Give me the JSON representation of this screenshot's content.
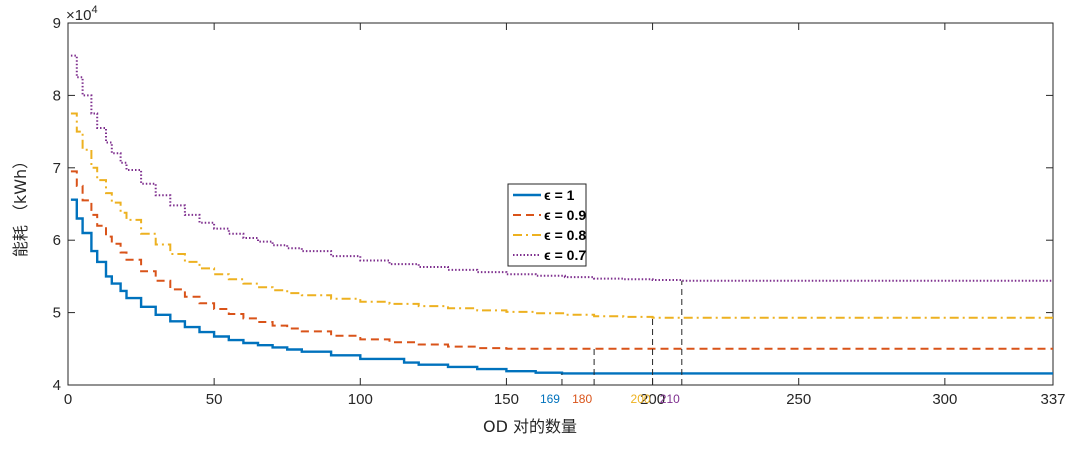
{
  "chart_data": {
    "type": "line",
    "xlabel": "OD 对的数量",
    "ylabel": "能耗 （kWh）",
    "y_multiplier": "×10",
    "y_multiplier_exp": "4",
    "xlim": [
      0,
      337
    ],
    "ylim": [
      40000,
      90000
    ],
    "x_ticks": [
      0,
      50,
      100,
      150,
      200,
      250,
      300,
      337
    ],
    "x_tick_labels": [
      "0",
      "50",
      "100",
      "150",
      "200",
      "250",
      "300",
      "337"
    ],
    "y_ticks": [
      40000,
      50000,
      60000,
      70000,
      80000,
      90000
    ],
    "y_tick_labels": [
      "4",
      "5",
      "6",
      "7",
      "8",
      "9"
    ],
    "grid": false,
    "legend_position": "center",
    "series": [
      {
        "name": "ϵ = 1",
        "color": "#0072BD",
        "dash": "solid",
        "x": [
          1,
          3,
          5,
          8,
          10,
          13,
          15,
          18,
          20,
          25,
          30,
          35,
          40,
          45,
          50,
          55,
          60,
          65,
          70,
          75,
          80,
          90,
          100,
          115,
          120,
          130,
          140,
          150,
          160,
          169,
          200,
          250,
          300,
          337
        ],
        "y": [
          65600,
          63000,
          61000,
          58500,
          57000,
          55000,
          54000,
          53000,
          52000,
          50800,
          49700,
          48800,
          48000,
          47300,
          46700,
          46200,
          45800,
          45500,
          45200,
          44900,
          44600,
          44100,
          43600,
          43100,
          42800,
          42500,
          42200,
          41900,
          41700,
          41600,
          41600,
          41600,
          41600,
          41600
        ],
        "end_x": 169
      },
      {
        "name": "ϵ = 0.9",
        "color": "#D95319",
        "dash": "dashed",
        "x": [
          1,
          3,
          5,
          8,
          10,
          13,
          15,
          18,
          20,
          25,
          30,
          35,
          40,
          45,
          50,
          55,
          60,
          65,
          70,
          75,
          80,
          90,
          100,
          110,
          120,
          130,
          140,
          150,
          160,
          170,
          180,
          200,
          250,
          300,
          337
        ],
        "y": [
          69500,
          67500,
          65500,
          63500,
          62000,
          60500,
          59500,
          58300,
          57300,
          55700,
          54400,
          53200,
          52200,
          51300,
          50500,
          49800,
          49200,
          48700,
          48200,
          47800,
          47400,
          46800,
          46300,
          45900,
          45600,
          45300,
          45100,
          45000,
          45000,
          45000,
          45000,
          45000,
          45000,
          45000,
          45000
        ],
        "end_x": 180
      },
      {
        "name": "ϵ = 0.8",
        "color": "#EDB120",
        "dash": "dashdot",
        "x": [
          1,
          3,
          5,
          8,
          10,
          13,
          15,
          18,
          20,
          25,
          30,
          35,
          40,
          45,
          50,
          55,
          60,
          65,
          70,
          75,
          80,
          90,
          100,
          110,
          120,
          130,
          140,
          150,
          160,
          170,
          180,
          190,
          200,
          250,
          300,
          337
        ],
        "y": [
          77500,
          75000,
          72500,
          70000,
          68300,
          66500,
          65200,
          63800,
          62800,
          60900,
          59400,
          58100,
          57000,
          56100,
          55300,
          54600,
          54000,
          53500,
          53100,
          52700,
          52400,
          51900,
          51500,
          51200,
          50900,
          50600,
          50300,
          50100,
          49900,
          49700,
          49500,
          49400,
          49300,
          49300,
          49300,
          49300
        ],
        "end_x": 200
      },
      {
        "name": "ϵ = 0.7",
        "color": "#7E2F8E",
        "dash": "dotted",
        "x": [
          1,
          3,
          5,
          8,
          10,
          13,
          15,
          18,
          20,
          25,
          30,
          35,
          40,
          45,
          50,
          55,
          60,
          65,
          70,
          75,
          80,
          90,
          100,
          110,
          120,
          130,
          140,
          150,
          160,
          170,
          180,
          190,
          200,
          210,
          250,
          300,
          337
        ],
        "y": [
          85500,
          82500,
          80000,
          77500,
          75500,
          73500,
          72000,
          70700,
          69700,
          67800,
          66200,
          64800,
          63500,
          62400,
          61600,
          60900,
          60300,
          59800,
          59300,
          58900,
          58500,
          57800,
          57200,
          56700,
          56300,
          55900,
          55600,
          55300,
          55100,
          54900,
          54700,
          54600,
          54500,
          54400,
          54400,
          54400,
          54400
        ],
        "end_x": 210
      }
    ],
    "annotations": [
      {
        "x": 169,
        "label": "169",
        "color": "#0072BD",
        "y_top": 41600
      },
      {
        "x": 180,
        "label": "180",
        "color": "#D95319",
        "y_top": 45000
      },
      {
        "x": 200,
        "label": "200",
        "color": "#EDB120",
        "y_top": 49300
      },
      {
        "x": 210,
        "label": "210",
        "color": "#7E2F8E",
        "y_top": 54400
      }
    ]
  }
}
